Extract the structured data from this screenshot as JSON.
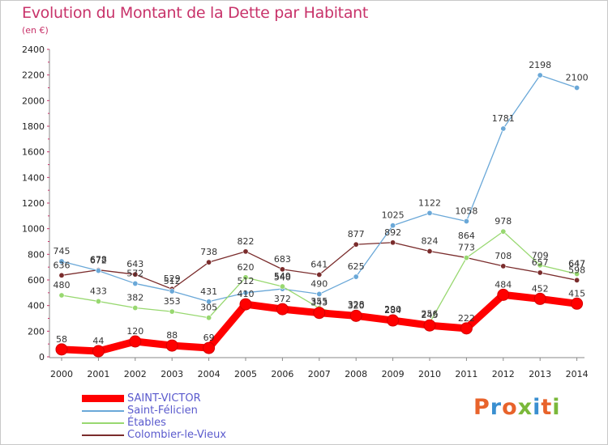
{
  "header": {
    "title": "Evolution du Montant de la Dette par Habitant",
    "unit": "(en €)"
  },
  "logo": {
    "text": "Proxiti",
    "colors": [
      "#e8632b",
      "#3a8fd0",
      "#e8632b",
      "#7ab83a",
      "#3a8fd0",
      "#e8632b",
      "#7ab83a"
    ]
  },
  "chart_data": {
    "type": "line",
    "x": [
      "2000",
      "2001",
      "2002",
      "2003",
      "2004",
      "2005",
      "2006",
      "2007",
      "2008",
      "2009",
      "2010",
      "2011",
      "2012",
      "2013",
      "2014"
    ],
    "ylim": [
      0,
      2400
    ],
    "yticks": [
      0,
      200,
      400,
      600,
      800,
      1000,
      1200,
      1400,
      1600,
      1800,
      2000,
      2200,
      2400
    ],
    "grid": false,
    "legend": "bottom-left",
    "series": [
      {
        "name": "SAINT-VICTOR",
        "color": "#ff0000",
        "values": [
          58,
          44,
          120,
          88,
          69,
          410,
          372,
          343,
          320,
          284,
          245,
          222,
          484,
          452,
          415
        ],
        "labels": [
          "58",
          "44",
          "120",
          "88",
          "69",
          "410",
          "372",
          "343",
          "320",
          "284",
          "245",
          "222",
          "484",
          "452",
          "415"
        ]
      },
      {
        "name": "Saint-Félicien",
        "color": "#6aa8d8",
        "values": [
          745,
          672,
          572,
          512,
          431,
          500,
          530,
          490,
          625,
          1025,
          1122,
          1058,
          1781,
          2198,
          2100
        ],
        "labels": [
          "745",
          "672",
          "572",
          "512",
          "431",
          "",
          "",
          "490",
          "625",
          "1025",
          "1122",
          "1058",
          "1781",
          "2198",
          "2100"
        ]
      },
      {
        "name": "Étables",
        "color": "#98d870",
        "values": [
          480,
          433,
          382,
          353,
          305,
          620,
          549,
          380,
          305,
          290,
          265,
          773,
          978,
          715,
          647
        ],
        "labels": [
          "480",
          "433",
          "382",
          "353",
          "305",
          "620",
          "549",
          "",
          "",
          "",
          "",
          "773",
          "978",
          "",
          "647"
        ]
      },
      {
        "name": "Colombier-le-Vieux",
        "color": "#7a2c2c",
        "values": [
          636,
          678,
          643,
          529,
          738,
          822,
          683,
          641,
          877,
          892,
          824,
          774,
          708,
          657,
          598
        ],
        "labels": [
          "636",
          "678",
          "643",
          "529",
          "738",
          "822",
          "683",
          "641",
          "877",
          "892",
          "824",
          "",
          "708",
          "657",
          "598"
        ]
      }
    ],
    "extra_labels": [
      {
        "x": "2005",
        "text": "512",
        "value": 512
      },
      {
        "x": "2006",
        "text": "540",
        "value": 540
      },
      {
        "x": "2007",
        "text": "355",
        "value": 355
      },
      {
        "x": "2008",
        "text": "328",
        "value": 328
      },
      {
        "x": "2009",
        "text": "290",
        "value": 290
      },
      {
        "x": "2010",
        "text": "256",
        "value": 256
      },
      {
        "x": "2011",
        "text": "864",
        "value": 864
      },
      {
        "x": "2013",
        "text": "709",
        "value": 709
      },
      {
        "x": "2014",
        "text": "647",
        "value": 647
      }
    ]
  }
}
